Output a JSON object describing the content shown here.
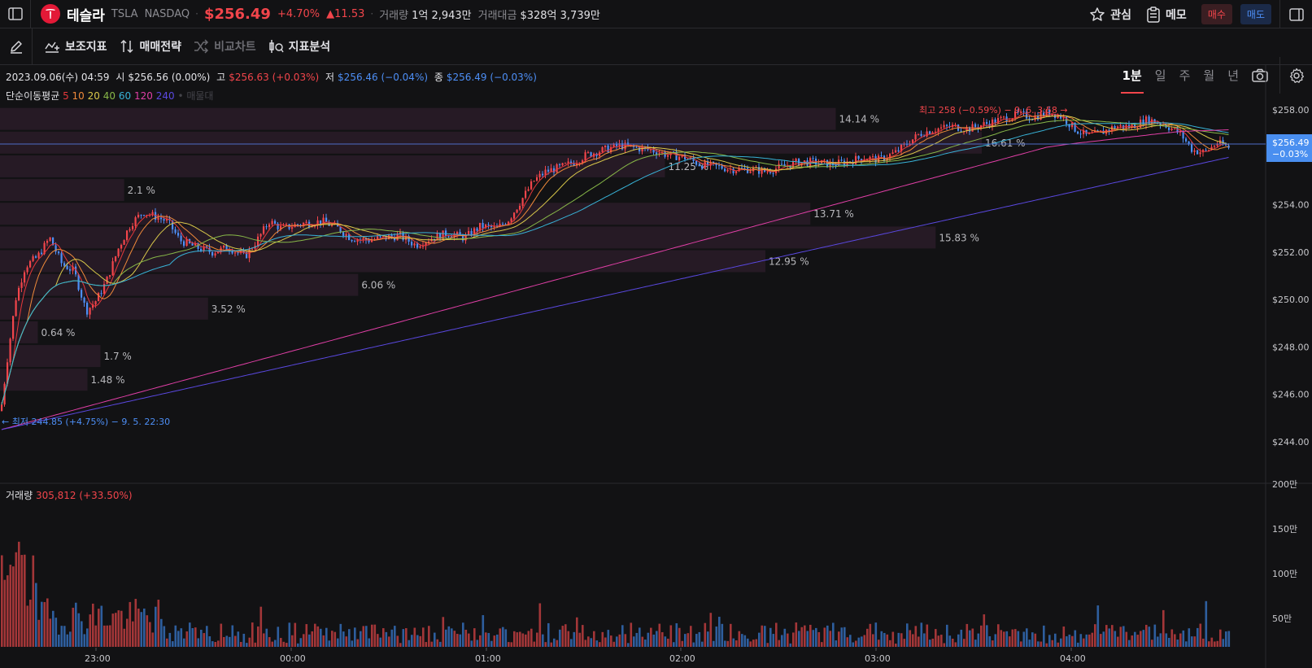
{
  "header": {
    "stock_name": "테슬라",
    "ticker": "TSLA",
    "exchange": "NASDAQ",
    "price": "$256.49",
    "change_pct": "+4.70%",
    "change_abs": "▲11.53",
    "volume_label": "거래량",
    "volume_value": "1억 2,943만",
    "turnover_label": "거래대금",
    "turnover_value": "$328억 3,739만",
    "watch_label": "관심",
    "memo_label": "메모",
    "buy_label": "매수",
    "sell_label": "매도"
  },
  "toolbar": {
    "indicator_label": "보조지표",
    "strategy_label": "매매전략",
    "compare_label": "비교차트",
    "analysis_label": "지표분석",
    "periods": [
      "1분",
      "일",
      "주",
      "월",
      "년"
    ],
    "active_period": "1분"
  },
  "info": {
    "datetime": "2023.09.06(수) 04:59",
    "open_label": "시",
    "open_value": "$256.56 (0.00%)",
    "high_label": "고",
    "high_value": "$256.63 (+0.03%)",
    "low_label": "저",
    "low_value": "$256.46 (−0.04%)",
    "close_label": "종",
    "close_value": "$256.49 (−0.03%)",
    "ma_label": "단순이동평균",
    "ma_periods": [
      "5",
      "10",
      "20",
      "40",
      "60",
      "120",
      "240"
    ],
    "ma_extra": "• 매물대"
  },
  "colors": {
    "up": "#f2454b",
    "down": "#4d8ef5",
    "ma5": "#e5383b",
    "ma10": "#f08a3a",
    "ma20": "#d9c84a",
    "ma40": "#88b848",
    "ma60": "#38b3d8",
    "ma120": "#e03fa6",
    "ma240": "#5a48e0"
  },
  "chart_data": {
    "type": "candlestick",
    "y_ticks": [
      "$258.00",
      "$256.00",
      "$254.00",
      "$252.00",
      "$250.00",
      "$248.00",
      "$246.00",
      "$244.00"
    ],
    "y_range": [
      243.2,
      259.0
    ],
    "x_ticks": [
      "23:00",
      "00:00",
      "01:00",
      "02:00",
      "03:00",
      "04:00"
    ],
    "current_price_label": "$256.49",
    "current_change_label": "−0.03%",
    "current_price": 256.49,
    "high_annotation": "최고 258 (−0.59%) − 9. 6. 3:58 →",
    "low_annotation": "← 최저 244.85 (+4.75%) − 9. 5. 22:30",
    "volume_profile": [
      {
        "price": 257.6,
        "pct": 14.14,
        "label": "14.14 %"
      },
      {
        "price": 256.6,
        "pct": 16.61,
        "label": "16.61 %"
      },
      {
        "price": 255.6,
        "pct": 11.25,
        "label": "11.25 %"
      },
      {
        "price": 254.6,
        "pct": 2.1,
        "label": "2.1 %"
      },
      {
        "price": 253.6,
        "pct": 13.71,
        "label": "13.71 %"
      },
      {
        "price": 252.6,
        "pct": 15.83,
        "label": "15.83 %"
      },
      {
        "price": 251.6,
        "pct": 12.95,
        "label": "12.95 %"
      },
      {
        "price": 250.6,
        "pct": 6.06,
        "label": "6.06 %"
      },
      {
        "price": 249.6,
        "pct": 3.52,
        "label": "3.52 %"
      },
      {
        "price": 248.6,
        "pct": 0.64,
        "label": "0.64 %"
      },
      {
        "price": 247.6,
        "pct": 1.7,
        "label": "1.7 %"
      },
      {
        "price": 246.6,
        "pct": 1.48,
        "label": "1.48 %"
      }
    ],
    "price_path": [
      [
        0,
        245.3
      ],
      [
        8,
        247.5
      ],
      [
        18,
        250.0
      ],
      [
        30,
        251.4
      ],
      [
        45,
        251.8
      ],
      [
        60,
        252.6
      ],
      [
        75,
        251.5
      ],
      [
        90,
        251.2
      ],
      [
        105,
        249.5
      ],
      [
        118,
        250.0
      ],
      [
        130,
        250.8
      ],
      [
        145,
        252.2
      ],
      [
        160,
        253.2
      ],
      [
        175,
        253.7
      ],
      [
        190,
        253.5
      ],
      [
        205,
        253.3
      ],
      [
        220,
        252.5
      ],
      [
        240,
        252.2
      ],
      [
        260,
        252.0
      ],
      [
        280,
        252.2
      ],
      [
        300,
        251.8
      ],
      [
        315,
        252.5
      ],
      [
        330,
        253.3
      ],
      [
        345,
        253.0
      ],
      [
        370,
        253.2
      ],
      [
        395,
        253.3
      ],
      [
        415,
        253.0
      ],
      [
        430,
        252.6
      ],
      [
        450,
        252.5
      ],
      [
        470,
        252.6
      ],
      [
        490,
        252.7
      ],
      [
        510,
        252.3
      ],
      [
        530,
        252.6
      ],
      [
        550,
        252.8
      ],
      [
        570,
        252.6
      ],
      [
        590,
        253.1
      ],
      [
        610,
        253.0
      ],
      [
        625,
        253.4
      ],
      [
        640,
        254.2
      ],
      [
        655,
        255.0
      ],
      [
        670,
        255.4
      ],
      [
        690,
        255.6
      ],
      [
        705,
        255.8
      ],
      [
        720,
        256.1
      ],
      [
        740,
        256.3
      ],
      [
        760,
        256.5
      ],
      [
        780,
        256.4
      ],
      [
        800,
        256.3
      ],
      [
        820,
        256.1
      ],
      [
        840,
        256.0
      ],
      [
        860,
        255.7
      ],
      [
        880,
        255.6
      ],
      [
        900,
        255.5
      ],
      [
        920,
        255.5
      ],
      [
        940,
        255.4
      ],
      [
        960,
        255.6
      ],
      [
        980,
        255.8
      ],
      [
        1000,
        255.8
      ],
      [
        1020,
        255.7
      ],
      [
        1040,
        255.8
      ],
      [
        1060,
        256.0
      ],
      [
        1080,
        255.9
      ],
      [
        1100,
        256.2
      ],
      [
        1115,
        256.6
      ],
      [
        1130,
        257.0
      ],
      [
        1150,
        257.2
      ],
      [
        1170,
        257.3
      ],
      [
        1190,
        257.2
      ],
      [
        1210,
        257.4
      ],
      [
        1230,
        257.6
      ],
      [
        1250,
        257.8
      ],
      [
        1270,
        257.7
      ],
      [
        1290,
        257.9
      ],
      [
        1305,
        257.7
      ],
      [
        1320,
        257.2
      ],
      [
        1335,
        256.9
      ],
      [
        1350,
        257.0
      ],
      [
        1370,
        257.3
      ],
      [
        1390,
        257.3
      ],
      [
        1410,
        257.6
      ],
      [
        1430,
        257.4
      ],
      [
        1450,
        257.0
      ],
      [
        1465,
        256.3
      ],
      [
        1480,
        256.2
      ],
      [
        1495,
        256.6
      ],
      [
        1511,
        256.4
      ]
    ]
  }
}
